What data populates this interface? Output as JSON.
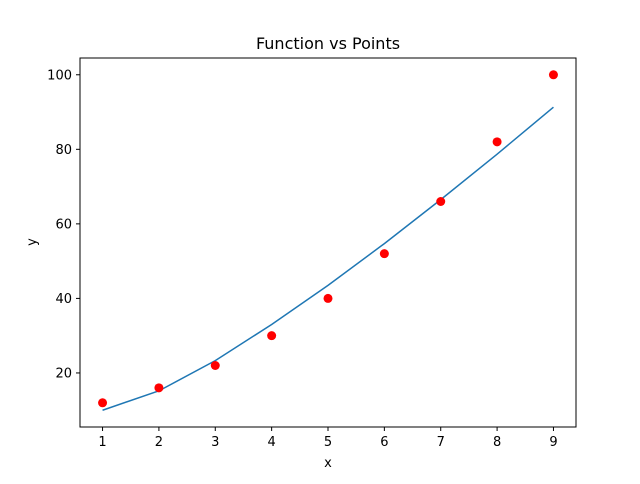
{
  "chart_data": {
    "type": "line",
    "title": "Function vs Points",
    "xlabel": "x",
    "ylabel": "y",
    "xlim": [
      0.6,
      9.4
    ],
    "ylim": [
      5.5,
      104.5
    ],
    "xticks": [
      1,
      2,
      3,
      4,
      5,
      6,
      7,
      8,
      9
    ],
    "yticks": [
      20,
      40,
      60,
      80,
      100
    ],
    "grid": false,
    "legend": "none",
    "series": [
      {
        "kind": "line",
        "color": "#1f77b4",
        "x": [
          1,
          2,
          3,
          4,
          5,
          6,
          7,
          8,
          9
        ],
        "y": [
          10,
          15.2,
          23.3,
          33.0,
          43.5,
          54.7,
          66.5,
          78.7,
          91.3
        ]
      },
      {
        "kind": "scatter",
        "color": "#ff0000",
        "x": [
          1,
          2,
          3,
          4,
          5,
          6,
          7,
          8,
          9
        ],
        "y": [
          12,
          16,
          22,
          30,
          40,
          52,
          66,
          82,
          100
        ]
      }
    ]
  }
}
